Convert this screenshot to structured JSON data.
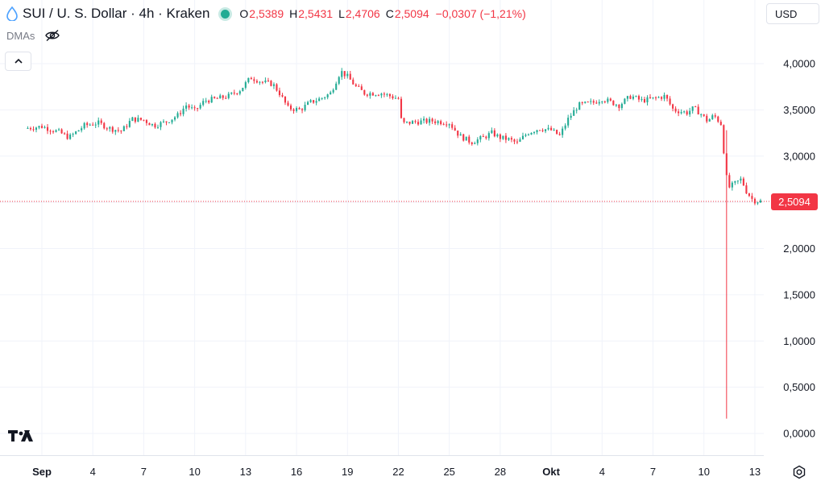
{
  "header": {
    "title": "SUI / U. S. Dollar · 4h · Kraken",
    "ohlc": [
      {
        "key": "O",
        "value": "2,5389"
      },
      {
        "key": "H",
        "value": "2,5431"
      },
      {
        "key": "L",
        "value": "2,4706"
      },
      {
        "key": "C",
        "value": "2,5094"
      }
    ],
    "change": "−0,0307 (−1,21%)"
  },
  "indicator": {
    "label": "DMAs"
  },
  "currency": {
    "label": "USD"
  },
  "colors": {
    "up": "#22ab94",
    "down": "#f23645",
    "grid": "#f0f3fa",
    "text": "#131722"
  },
  "chart_data": {
    "type": "candlestick",
    "title": "SUI / U. S. Dollar · 4h · Kraken",
    "last_price": 2.5094,
    "last_price_label": "2,5094",
    "ylim": [
      -0.06,
      4.15
    ],
    "y_ticks": [
      {
        "value": 4.0,
        "label": "4,0000"
      },
      {
        "value": 3.5,
        "label": "3,5000"
      },
      {
        "value": 3.0,
        "label": "3,0000"
      },
      {
        "value": 2.5,
        "label": "2,5000"
      },
      {
        "value": 2.0,
        "label": "2,0000"
      },
      {
        "value": 1.5,
        "label": "1,5000"
      },
      {
        "value": 1.0,
        "label": "1,0000"
      },
      {
        "value": 0.5,
        "label": "0,5000"
      },
      {
        "value": 0.0,
        "label": "0,0000"
      }
    ],
    "x_ticks": [
      {
        "day": 1,
        "label": "Sep",
        "bold": true
      },
      {
        "day": 4,
        "label": "4"
      },
      {
        "day": 7,
        "label": "7"
      },
      {
        "day": 10,
        "label": "10"
      },
      {
        "day": 13,
        "label": "13"
      },
      {
        "day": 16,
        "label": "16"
      },
      {
        "day": 19,
        "label": "19"
      },
      {
        "day": 22,
        "label": "22"
      },
      {
        "day": 25,
        "label": "25"
      },
      {
        "day": 28,
        "label": "28"
      },
      {
        "day": 31,
        "label": "Okt",
        "bold": true
      },
      {
        "day": 34,
        "label": "4"
      },
      {
        "day": 37,
        "label": "7"
      },
      {
        "day": 40,
        "label": "10"
      },
      {
        "day": 43,
        "label": "13"
      }
    ],
    "close_path": [
      [
        0.0,
        3.3
      ],
      [
        1.0,
        3.32
      ],
      [
        2.0,
        3.26
      ],
      [
        2.6,
        3.2
      ],
      [
        3.5,
        3.33
      ],
      [
        4.3,
        3.36
      ],
      [
        5.0,
        3.3
      ],
      [
        5.7,
        3.27
      ],
      [
        6.3,
        3.4
      ],
      [
        7.0,
        3.39
      ],
      [
        7.6,
        3.33
      ],
      [
        8.3,
        3.37
      ],
      [
        9.0,
        3.44
      ],
      [
        9.5,
        3.55
      ],
      [
        10.0,
        3.49
      ],
      [
        10.6,
        3.6
      ],
      [
        11.3,
        3.62
      ],
      [
        12.0,
        3.65
      ],
      [
        12.7,
        3.72
      ],
      [
        13.3,
        3.85
      ],
      [
        14.0,
        3.8
      ],
      [
        14.6,
        3.78
      ],
      [
        15.0,
        3.68
      ],
      [
        15.5,
        3.52
      ],
      [
        16.2,
        3.5
      ],
      [
        16.8,
        3.58
      ],
      [
        17.4,
        3.62
      ],
      [
        18.0,
        3.68
      ],
      [
        18.6,
        3.92
      ],
      [
        19.0,
        3.86
      ],
      [
        19.5,
        3.75
      ],
      [
        20.0,
        3.68
      ],
      [
        21.0,
        3.68
      ],
      [
        22.0,
        3.62
      ],
      [
        22.2,
        3.35
      ],
      [
        23.0,
        3.37
      ],
      [
        24.0,
        3.38
      ],
      [
        25.0,
        3.36
      ],
      [
        25.6,
        3.22
      ],
      [
        26.3,
        3.15
      ],
      [
        27.0,
        3.2
      ],
      [
        27.5,
        3.25
      ],
      [
        28.0,
        3.2
      ],
      [
        28.5,
        3.18
      ],
      [
        29.0,
        3.14
      ],
      [
        29.6,
        3.25
      ],
      [
        30.3,
        3.3
      ],
      [
        31.0,
        3.28
      ],
      [
        31.5,
        3.22
      ],
      [
        32.0,
        3.4
      ],
      [
        32.6,
        3.55
      ],
      [
        33.5,
        3.58
      ],
      [
        34.0,
        3.62
      ],
      [
        35.0,
        3.55
      ],
      [
        35.7,
        3.65
      ],
      [
        36.3,
        3.6
      ],
      [
        37.0,
        3.62
      ],
      [
        37.7,
        3.65
      ],
      [
        38.2,
        3.5
      ],
      [
        39.0,
        3.47
      ],
      [
        39.4,
        3.52
      ],
      [
        39.8,
        3.46
      ],
      [
        40.2,
        3.38
      ],
      [
        40.6,
        3.44
      ],
      [
        41.0,
        3.35
      ],
      [
        41.4,
        2.65
      ],
      [
        41.8,
        2.7
      ],
      [
        42.2,
        2.75
      ],
      [
        42.5,
        2.62
      ],
      [
        42.9,
        2.52
      ],
      [
        43.4,
        2.5094
      ]
    ],
    "wick_events": [
      {
        "day": 41.4,
        "high": 3.28,
        "low": 0.16,
        "label": "flash-crash wick"
      }
    ]
  }
}
